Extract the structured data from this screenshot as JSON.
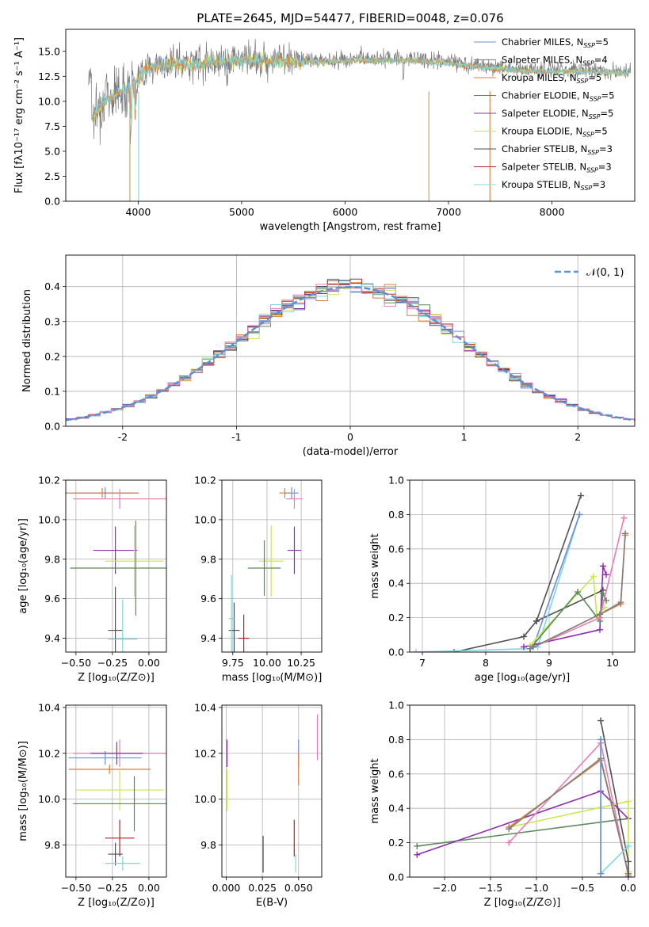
{
  "figure_title": "PLATE=2645, MJD=54477, FIBERID=0048, z=0.076",
  "colors": {
    "chabrier_miles": "#6c8ed6",
    "salpeter_miles": "#808080",
    "kroupa_miles": "#e07b39",
    "chabrier_elodie": "#5a8a5a",
    "salpeter_elodie": "#8e2cb0",
    "kroupa_elodie": "#c8e84a",
    "chabrier_stelib": "#505050",
    "salpeter_stelib": "#b22222",
    "kroupa_stelib": "#7fd6dc",
    "pink": "#e87cb4",
    "gaussian": "#5b8fd6"
  },
  "chart_data": [
    {
      "id": "spectrum",
      "type": "line",
      "xlabel": "wavelength [Angstrom, rest frame]",
      "ylabel": "Flux [fλ10⁻¹⁷ erg cm⁻² s⁻¹ A⁻¹]",
      "xlim": [
        3300,
        8800
      ],
      "ylim": [
        0,
        17.2
      ],
      "xticks": [
        4000,
        5000,
        6000,
        7000,
        8000
      ],
      "yticks": [
        0.0,
        2.5,
        5.0,
        7.5,
        10.0,
        12.5,
        15.0
      ],
      "legend": [
        "Chabrier MILES, N_SSP=5",
        "Salpeter MILES, N_SSP=4",
        "Kroupa MILES, N_SSP=5",
        "Chabrier ELODIE, N_SSP=5",
        "Salpeter ELODIE, N_SSP=5",
        "Kroupa ELODIE, N_SSP=5",
        "Chabrier STELIB, N_SSP=3",
        "Salpeter STELIB, N_SSP=3",
        "Kroupa STELIB, N_SSP=3"
      ],
      "legend_position": "right",
      "continuum": {
        "x": [
          3550,
          3700,
          3900,
          4100,
          4300,
          4600,
          5000,
          5400,
          5800,
          6200,
          6600,
          7000,
          7400,
          7800,
          8300,
          8750
        ],
        "y": [
          8.5,
          10.5,
          11.5,
          13.5,
          13.8,
          14.0,
          14.3,
          14.2,
          14.1,
          14.3,
          14.3,
          14.0,
          13.5,
          13.2,
          13.2,
          13.0
        ]
      }
    },
    {
      "id": "residuals",
      "type": "line",
      "xlabel": "(data-model)/error",
      "ylabel": "Normed distribution",
      "xlim": [
        -2.5,
        2.5
      ],
      "ylim": [
        0,
        0.49
      ],
      "xticks": [
        -2,
        -1,
        0,
        1,
        2
      ],
      "yticks": [
        0.0,
        0.1,
        0.2,
        0.3,
        0.4
      ],
      "legend": [
        "𝒩(0, 1)"
      ],
      "legend_position": "top-right",
      "gaussian": {
        "mean": 0,
        "sigma": 1
      }
    },
    {
      "id": "age_vs_Z",
      "type": "scatter",
      "xlabel": "Z [log₁₀(Z/Z⊙)]",
      "ylabel": "age  [log₁₀(age/yr)]",
      "xlim": [
        -0.57,
        0.12
      ],
      "ylim": [
        9.33,
        10.2
      ],
      "xticks": [
        -0.5,
        -0.25,
        0.0
      ],
      "xtick_labels": [
        "−0.50",
        "−0.25",
        "0.00"
      ],
      "yticks": [
        9.4,
        9.6,
        9.8,
        10.0,
        10.2
      ],
      "errorbars": [
        {
          "c": "chabrier_miles",
          "x": -0.3,
          "y": 10.135,
          "xe": 0.22,
          "ye": 0.03
        },
        {
          "c": "kroupa_miles",
          "x": -0.32,
          "y": 10.135,
          "xe": 0.25,
          "ye": 0.025
        },
        {
          "c": "pink",
          "x": -0.2,
          "y": 10.105,
          "xe": 0.32,
          "ye": 0.05
        },
        {
          "c": "salpeter_elodie",
          "x": -0.23,
          "y": 9.845,
          "xe": 0.15,
          "ye": 0.12
        },
        {
          "c": "kroupa_elodie",
          "x": -0.1,
          "y": 9.79,
          "xe": 0.2,
          "ye": 0.18
        },
        {
          "c": "chabrier_elodie",
          "x": -0.09,
          "y": 9.755,
          "xe": 0.45,
          "ye": 0.24
        },
        {
          "c": "chabrier_stelib",
          "x": -0.23,
          "y": 9.44,
          "xe": 0.05,
          "ye": 0.22
        },
        {
          "c": "kroupa_stelib",
          "x": -0.18,
          "y": 9.395,
          "xe": 0.1,
          "ye": 0.2
        }
      ]
    },
    {
      "id": "age_vs_mass",
      "type": "scatter",
      "xlabel": "mass [log₁₀(M/M⊙)]",
      "ylabel": "",
      "xlim": [
        9.67,
        10.4
      ],
      "ylim": [
        9.33,
        10.2
      ],
      "xticks": [
        9.75,
        10.0,
        10.25
      ],
      "xtick_labels": [
        "9.75",
        "10.00",
        "10.25"
      ],
      "yticks": [
        9.4,
        9.6,
        9.8,
        10.0,
        10.2
      ],
      "errorbars": [
        {
          "c": "chabrier_miles",
          "x": 10.18,
          "y": 10.135,
          "xe": 0.05,
          "ye": 0.03
        },
        {
          "c": "kroupa_miles",
          "x": 10.13,
          "y": 10.135,
          "xe": 0.04,
          "ye": 0.025
        },
        {
          "c": "pink",
          "x": 10.2,
          "y": 10.105,
          "xe": 0.06,
          "ye": 0.05
        },
        {
          "c": "salpeter_elodie",
          "x": 10.2,
          "y": 9.845,
          "xe": 0.05,
          "ye": 0.12
        },
        {
          "c": "kroupa_elodie",
          "x": 10.03,
          "y": 9.79,
          "xe": 0.09,
          "ye": 0.18
        },
        {
          "c": "chabrier_elodie",
          "x": 9.98,
          "y": 9.755,
          "xe": 0.12,
          "ye": 0.14
        },
        {
          "c": "chabrier_stelib",
          "x": 9.76,
          "y": 9.44,
          "xe": 0.04,
          "ye": 0.14
        },
        {
          "c": "salpeter_stelib",
          "x": 9.83,
          "y": 9.4,
          "xe": 0.04,
          "ye": 0.12
        },
        {
          "c": "kroupa_stelib",
          "x": 9.74,
          "y": 9.5,
          "xe": 0.02,
          "ye": 0.22
        }
      ]
    },
    {
      "id": "mass_weight_vs_age",
      "type": "line",
      "xlabel": "age  [log₁₀(age/yr)]",
      "ylabel": "mass weight",
      "xlim": [
        6.8,
        10.35
      ],
      "ylim": [
        0,
        1.0
      ],
      "xticks": [
        7,
        8,
        9,
        10
      ],
      "yticks": [
        0.0,
        0.2,
        0.4,
        0.6,
        0.8,
        1.0
      ],
      "series": [
        {
          "c": "chabrier_stelib",
          "x": [
            7.5,
            8.6,
            8.8,
            9.5
          ],
          "y": [
            0.0,
            0.09,
            0.18,
            0.91
          ]
        },
        {
          "c": "chabrier_stelib",
          "x": [
            8.8,
            9.85
          ],
          "y": [
            0.18,
            0.36
          ]
        },
        {
          "c": "kroupa_stelib",
          "x": [
            6.9,
            8.7,
            8.82,
            9.48
          ],
          "y": [
            0.0,
            0.02,
            0.03,
            0.8
          ]
        },
        {
          "c": "chabrier_miles",
          "x": [
            8.75,
            9.48
          ],
          "y": [
            0.03,
            0.8
          ]
        },
        {
          "c": "salpeter_elodie",
          "x": [
            8.6,
            9.8,
            9.85,
            9.9
          ],
          "y": [
            0.03,
            0.13,
            0.5,
            0.45
          ]
        },
        {
          "c": "kroupa_elodie",
          "x": [
            8.7,
            9.7,
            9.75,
            9.88
          ],
          "y": [
            0.04,
            0.44,
            0.21,
            0.26
          ]
        },
        {
          "c": "chabrier_elodie",
          "x": [
            8.7,
            9.45,
            9.8,
            9.85,
            9.9
          ],
          "y": [
            0.02,
            0.35,
            0.18,
            0.34,
            0.3
          ]
        },
        {
          "c": "pink",
          "x": [
            8.7,
            9.8,
            10.18
          ],
          "y": [
            0.02,
            0.2,
            0.78
          ]
        },
        {
          "c": "kroupa_miles",
          "x": [
            8.7,
            9.8,
            10.13,
            10.2
          ],
          "y": [
            0.02,
            0.22,
            0.28,
            0.68
          ]
        },
        {
          "c": "salpeter_miles",
          "x": [
            8.7,
            9.8,
            10.13,
            10.2
          ],
          "y": [
            0.02,
            0.22,
            0.29,
            0.69
          ]
        }
      ]
    },
    {
      "id": "mass_vs_Z",
      "type": "scatter",
      "xlabel": "Z [log₁₀(Z/Z⊙)]",
      "ylabel": "mass [log₁₀(M/M⊙)]",
      "xlim": [
        -0.57,
        0.12
      ],
      "ylim": [
        9.66,
        10.41
      ],
      "xticks": [
        -0.5,
        -0.25,
        0.0
      ],
      "xtick_labels": [
        "−0.50",
        "−0.25",
        "0.00"
      ],
      "yticks": [
        9.8,
        10.0,
        10.2,
        10.4
      ],
      "errorbars": [
        {
          "c": "chabrier_miles",
          "x": -0.3,
          "y": 10.18,
          "xe": 0.25,
          "ye": 0.03
        },
        {
          "c": "kroupa_miles",
          "x": -0.27,
          "y": 10.13,
          "xe": 0.28,
          "ye": 0.02
        },
        {
          "c": "pink",
          "x": -0.2,
          "y": 10.2,
          "xe": 0.32,
          "ye": 0.06
        },
        {
          "c": "salpeter_elodie",
          "x": -0.22,
          "y": 10.2,
          "xe": 0.18,
          "ye": 0.05
        },
        {
          "c": "kroupa_elodie",
          "x": -0.2,
          "y": 10.04,
          "xe": 0.3,
          "ye": 0.09
        },
        {
          "c": "chabrier_elodie",
          "x": -0.1,
          "y": 9.98,
          "xe": 0.42,
          "ye": 0.12
        },
        {
          "c": "salpeter_stelib",
          "x": -0.2,
          "y": 9.83,
          "xe": 0.1,
          "ye": 0.08
        },
        {
          "c": "chabrier_stelib",
          "x": -0.23,
          "y": 9.76,
          "xe": 0.05,
          "ye": 0.05
        },
        {
          "c": "kroupa_stelib",
          "x": -0.18,
          "y": 9.72,
          "xe": 0.12,
          "ye": 0.03
        }
      ]
    },
    {
      "id": "mass_vs_ebv",
      "type": "scatter",
      "xlabel": "E(B-V)",
      "ylabel": "",
      "xlim": [
        -0.003,
        0.066
      ],
      "ylim": [
        9.66,
        10.41
      ],
      "xticks": [
        0.0,
        0.025,
        0.05
      ],
      "xtick_labels": [
        "0.000",
        "0.025",
        "0.050"
      ],
      "yticks": [
        9.8,
        10.0,
        10.2,
        10.4
      ],
      "errorbars": [
        {
          "c": "salpeter_elodie",
          "x": 0.0005,
          "y": 10.2,
          "xe": 0,
          "ye": 0.06
        },
        {
          "c": "kroupa_elodie",
          "x": 0.0005,
          "y": 10.04,
          "xe": 0,
          "ye": 0.09
        },
        {
          "c": "chabrier_stelib",
          "x": 0.0255,
          "y": 9.76,
          "xe": 0,
          "ye": 0.08
        },
        {
          "c": "salpeter_stelib",
          "x": 0.047,
          "y": 9.83,
          "xe": 0,
          "ye": 0.08
        },
        {
          "c": "kroupa_stelib",
          "x": 0.048,
          "y": 9.72,
          "xe": 0,
          "ye": 0.04
        },
        {
          "c": "chabrier_miles",
          "x": 0.05,
          "y": 10.2,
          "xe": 0,
          "ye": 0.06
        },
        {
          "c": "kroupa_miles",
          "x": 0.05,
          "y": 10.13,
          "xe": 0,
          "ye": 0.07
        },
        {
          "c": "pink",
          "x": 0.063,
          "y": 10.27,
          "xe": 0,
          "ye": 0.1
        }
      ]
    },
    {
      "id": "mass_weight_vs_Z",
      "type": "line",
      "xlabel": "Z [log₁₀(Z/Z⊙)]",
      "ylabel": "mass weight",
      "xlim": [
        -2.38,
        0.07
      ],
      "ylim": [
        0,
        1.0
      ],
      "xticks": [
        -2.0,
        -1.5,
        -1.0,
        -0.5,
        0.0
      ],
      "xtick_labels": [
        "−2.0",
        "−1.5",
        "−1.0",
        "−0.5",
        "0.0"
      ],
      "yticks": [
        0.0,
        0.2,
        0.4,
        0.6,
        0.8,
        1.0
      ],
      "series": [
        {
          "c": "chabrier_elodie",
          "x": [
            -2.3,
            0.0
          ],
          "y": [
            0.18,
            0.34
          ]
        },
        {
          "c": "salpeter_elodie",
          "x": [
            -2.3,
            -0.3,
            0.0
          ],
          "y": [
            0.13,
            0.5,
            0.34
          ]
        },
        {
          "c": "kroupa_elodie",
          "x": [
            -1.3,
            0.0,
            0.0
          ],
          "y": [
            0.29,
            0.44,
            0.03
          ]
        },
        {
          "c": "pink",
          "x": [
            -1.3,
            -0.3,
            0.0
          ],
          "y": [
            0.2,
            0.78,
            0.01
          ]
        },
        {
          "c": "kroupa_miles",
          "x": [
            -1.3,
            -0.3,
            0.0
          ],
          "y": [
            0.29,
            0.68,
            0.02
          ]
        },
        {
          "c": "salpeter_miles",
          "x": [
            -1.3,
            -0.3,
            0.0
          ],
          "y": [
            0.28,
            0.69,
            0.02
          ]
        },
        {
          "c": "chabrier_stelib",
          "x": [
            -0.3,
            0.0,
            0.0
          ],
          "y": [
            0.91,
            0.09,
            0.0
          ]
        },
        {
          "c": "kroupa_stelib",
          "x": [
            -0.3,
            -0.3,
            0.0
          ],
          "y": [
            0.8,
            0.02,
            0.18
          ]
        },
        {
          "c": "chabrier_miles",
          "x": [
            -0.3,
            -0.3
          ],
          "y": [
            0.8,
            0.02
          ]
        }
      ]
    }
  ]
}
